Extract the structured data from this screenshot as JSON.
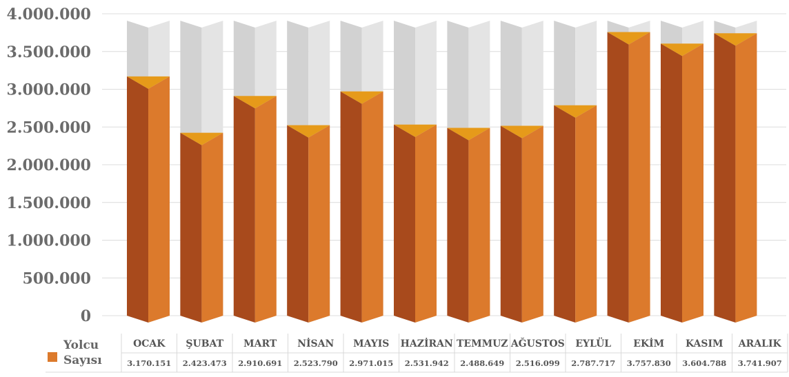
{
  "chart_data": {
    "type": "bar",
    "title": "",
    "xlabel": "",
    "ylabel": "",
    "ylim": [
      0,
      4000000
    ],
    "yticks": [
      "0",
      "500.000",
      "1.000.000",
      "1.500.000",
      "2.000.000",
      "2.500.000",
      "3.000.000",
      "3.500.000",
      "4.000.000"
    ],
    "grid": true,
    "legend_placement": "bottom-left (data table)",
    "categories": [
      "OCAK",
      "ŞUBAT",
      "MART",
      "NİSAN",
      "MAYIS",
      "HAZİRAN",
      "TEMMUZ",
      "AĞUSTOS",
      "EYLÜL",
      "EKİM",
      "KASIM",
      "ARALIK"
    ],
    "series": [
      {
        "name": "Yolcu Sayısı",
        "legend_lines": [
          "Yolcu",
          "Sayısı"
        ],
        "values": [
          3170151,
          2423473,
          2910691,
          2523790,
          2971015,
          2531942,
          2488649,
          2516099,
          2787717,
          3757830,
          3604788,
          3741907
        ],
        "value_labels": [
          "3.170.151",
          "2.423.473",
          "2.910.691",
          "2.523.790",
          "2.971.015",
          "2.531.942",
          "2.488.649",
          "2.516.099",
          "2.787.717",
          "3.757.830",
          "3.604.788",
          "3.741.907"
        ],
        "color": "#dc7a2c"
      }
    ],
    "colors": {
      "bar_front": "#dc7a2c",
      "bar_side": "#a84a1c",
      "bar_top": "#e69a1a",
      "track_front": "#e4e4e4",
      "track_side": "#d2d2d2",
      "grid": "#dcdcdc",
      "tick_text": "#6b6b6b",
      "table_text": "#555555",
      "table_border": "#d9d9d9"
    }
  }
}
